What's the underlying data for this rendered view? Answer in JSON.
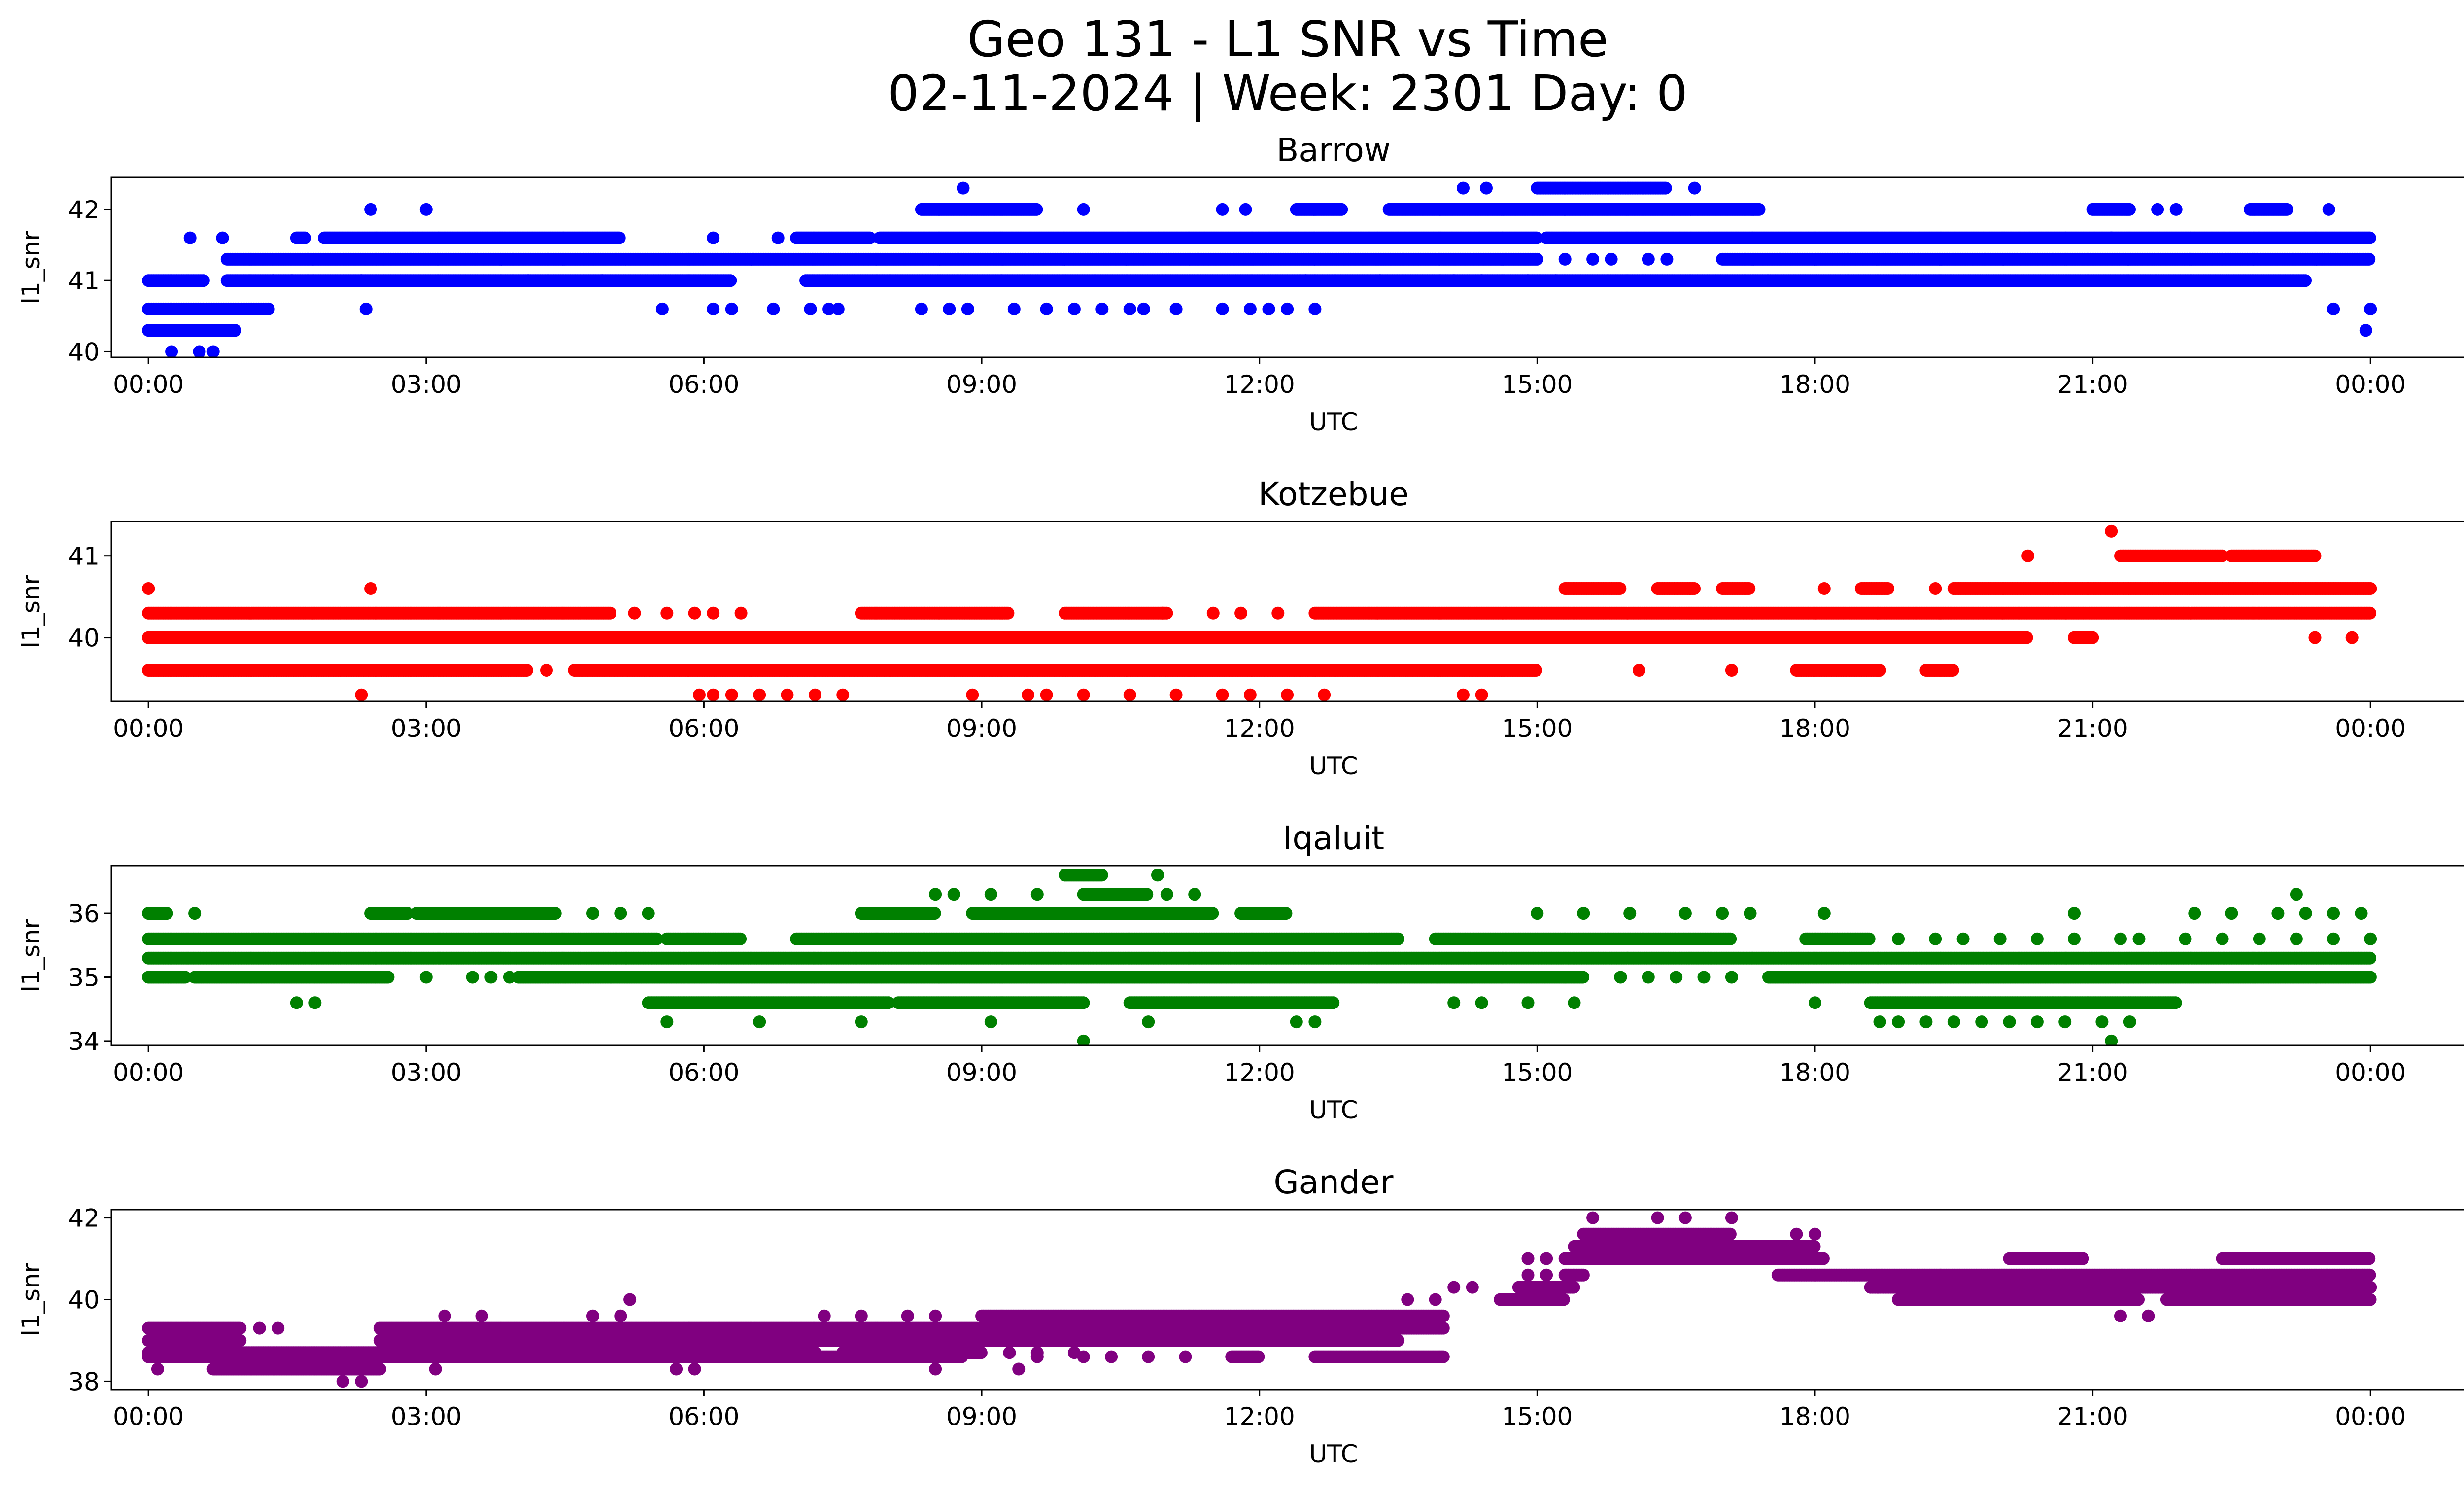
{
  "figure": {
    "title_line1": "Geo 131 - L1 SNR vs Time",
    "title_line2": "02-11-2024 | Week: 2301 Day: 0"
  },
  "chart_data": [
    {
      "type": "scatter",
      "title": "Barrow",
      "xlabel": "UTC",
      "ylabel": "l1_snr",
      "color": "#0000ff",
      "xlim": [
        -0.4,
        26.0
      ],
      "ylim": [
        39.92,
        42.45
      ],
      "xticks": [
        0,
        3,
        6,
        9,
        12,
        15,
        18,
        21,
        24
      ],
      "xtick_labels": [
        "00:00",
        "03:00",
        "06:00",
        "09:00",
        "12:00",
        "15:00",
        "18:00",
        "21:00",
        "00:00"
      ],
      "yticks": [
        40,
        41,
        42
      ],
      "series": [
        {
          "name": "band",
          "value": 41.0,
          "segments": [
            [
              0.0,
              0.6
            ],
            [
              0.85,
              6.3
            ],
            [
              7.1,
              17.5
            ],
            [
              17.5,
              23.3
            ]
          ],
          "points": [
            1.35,
            1.55,
            2.3,
            4.1,
            4.9,
            12.5,
            13.3,
            14.1,
            14.4,
            14.9,
            15.2
          ]
        },
        {
          "name": "band",
          "value": 41.3,
          "segments": [
            [
              0.85,
              15.0
            ],
            [
              17.0,
              24.0
            ]
          ],
          "points": [
            15.3,
            15.6,
            15.8,
            16.2,
            16.4
          ]
        },
        {
          "name": "band",
          "value": 41.6,
          "segments": [
            [
              1.6,
              1.7
            ],
            [
              1.9,
              5.1
            ],
            [
              7.0,
              7.8
            ],
            [
              7.9,
              15.0
            ],
            [
              15.1,
              24.0
            ]
          ],
          "points": [
            0.45,
            0.8,
            6.1,
            6.8,
            21.2
          ]
        },
        {
          "name": "band",
          "value": 42.0,
          "segments": [
            [
              8.35,
              9.6
            ],
            [
              12.4,
              12.9
            ],
            [
              13.4,
              17.4
            ],
            [
              21.0,
              21.4
            ],
            [
              22.7,
              23.1
            ]
          ],
          "points": [
            2.4,
            3.0,
            10.1,
            11.6,
            11.85,
            21.7,
            21.9,
            23.55
          ]
        },
        {
          "name": "band",
          "value": 42.3,
          "segments": [
            [
              15.0,
              16.4
            ]
          ],
          "points": [
            8.8,
            14.2,
            14.45,
            16.7
          ]
        },
        {
          "name": "band",
          "value": 40.6,
          "segments": [
            [
              0.0,
              1.3
            ]
          ],
          "points": [
            2.35,
            5.55,
            6.1,
            6.3,
            6.75,
            7.15,
            7.35,
            7.45,
            8.35,
            8.65,
            8.85,
            9.35,
            9.7,
            10.0,
            10.3,
            10.6,
            10.75,
            11.1,
            11.6,
            11.9,
            12.1,
            12.3,
            12.6,
            23.6,
            24.0
          ]
        },
        {
          "name": "band",
          "value": 40.3,
          "segments": [
            [
              0.0,
              0.95
            ]
          ],
          "points": [
            23.95
          ]
        },
        {
          "name": "band",
          "value": 40.0,
          "segments": [],
          "points": [
            0.25,
            0.55,
            0.7
          ]
        }
      ]
    },
    {
      "type": "scatter",
      "title": "Kotzebue",
      "xlabel": "UTC",
      "ylabel": "l1_snr",
      "color": "#ff0000",
      "xlim": [
        -0.4,
        26.0
      ],
      "ylim": [
        39.22,
        41.42
      ],
      "xticks": [
        0,
        3,
        6,
        9,
        12,
        15,
        18,
        21,
        24
      ],
      "xtick_labels": [
        "00:00",
        "03:00",
        "06:00",
        "09:00",
        "12:00",
        "15:00",
        "18:00",
        "21:00",
        "00:00"
      ],
      "yticks": [
        40,
        41
      ],
      "series": [
        {
          "name": "band",
          "value": 40.0,
          "segments": [
            [
              0.0,
              20.3
            ],
            [
              20.8,
              21.0
            ]
          ],
          "points": [
            23.4,
            23.8
          ]
        },
        {
          "name": "band",
          "value": 40.3,
          "segments": [
            [
              0.0,
              5.0
            ],
            [
              7.7,
              9.3
            ],
            [
              9.9,
              11.0
            ],
            [
              12.6,
              24.0
            ]
          ],
          "points": [
            5.25,
            5.6,
            5.9,
            6.1,
            6.4,
            10.95,
            11.5,
            11.8,
            12.2
          ]
        },
        {
          "name": "band",
          "value": 39.6,
          "segments": [
            [
              0.0,
              4.1
            ],
            [
              4.6,
              15.0
            ],
            [
              17.8,
              18.7
            ],
            [
              19.2,
              19.5
            ]
          ],
          "points": [
            4.3,
            17.1,
            16.1
          ]
        },
        {
          "name": "band",
          "value": 39.3,
          "segments": [],
          "points": [
            2.3,
            5.95,
            6.1,
            6.3,
            6.6,
            6.9,
            7.2,
            7.5,
            8.9,
            9.5,
            9.7,
            10.1,
            10.6,
            11.1,
            11.6,
            11.9,
            12.3,
            12.7,
            14.2,
            14.4
          ]
        },
        {
          "name": "band",
          "value": 40.6,
          "segments": [
            [
              15.3,
              15.9
            ],
            [
              16.3,
              16.7
            ],
            [
              17.0,
              17.3
            ],
            [
              18.5,
              18.8
            ],
            [
              19.5,
              24.0
            ]
          ],
          "points": [
            0.0,
            2.4,
            18.1,
            19.3
          ]
        },
        {
          "name": "band",
          "value": 41.0,
          "segments": [
            [
              21.3,
              22.4
            ],
            [
              22.5,
              23.4
            ]
          ],
          "points": [
            20.3
          ]
        },
        {
          "name": "band",
          "value": 41.3,
          "segments": [],
          "points": [
            21.2
          ]
        }
      ]
    },
    {
      "type": "scatter",
      "title": "Iqaluit",
      "xlabel": "UTC",
      "ylabel": "l1_snr",
      "color": "#008000",
      "xlim": [
        -0.4,
        26.0
      ],
      "ylim": [
        33.93,
        36.75
      ],
      "xticks": [
        0,
        3,
        6,
        9,
        12,
        15,
        18,
        21,
        24
      ],
      "xtick_labels": [
        "00:00",
        "03:00",
        "06:00",
        "09:00",
        "12:00",
        "15:00",
        "18:00",
        "21:00",
        "00:00"
      ],
      "yticks": [
        34,
        35,
        36
      ],
      "series": [
        {
          "name": "band",
          "value": 35.3,
          "segments": [
            [
              0.0,
              24.0
            ]
          ],
          "points": []
        },
        {
          "name": "band",
          "value": 35.6,
          "segments": [
            [
              0.0,
              5.5
            ],
            [
              5.6,
              6.4
            ],
            [
              7.0,
              13.5
            ],
            [
              13.9,
              17.1
            ],
            [
              17.9,
              18.6
            ]
          ],
          "points": [
            18.9,
            19.3,
            19.6,
            20.0,
            20.4,
            20.8,
            21.3,
            21.5,
            22.0,
            22.4,
            22.8,
            23.2,
            23.6,
            24.0
          ]
        },
        {
          "name": "band",
          "value": 35.0,
          "segments": [
            [
              0.0,
              0.4
            ],
            [
              0.5,
              2.6
            ],
            [
              4.0,
              5.0
            ],
            [
              5.0,
              15.5
            ],
            [
              17.5,
              24.0
            ]
          ],
          "points": [
            3.0,
            3.5,
            3.7,
            3.9,
            15.9,
            16.2,
            16.5,
            16.8,
            17.1
          ]
        },
        {
          "name": "band",
          "value": 36.0,
          "segments": [
            [
              0.0,
              0.2
            ],
            [
              2.4,
              2.8
            ],
            [
              2.9,
              4.4
            ],
            [
              7.7,
              8.5
            ],
            [
              8.9,
              11.5
            ],
            [
              11.8,
              12.3
            ]
          ],
          "points": [
            0.5,
            4.8,
            5.1,
            5.4,
            15.0,
            15.5,
            16.0,
            16.6,
            17.0,
            17.3,
            18.1,
            20.8,
            22.1,
            22.5,
            23.0,
            23.3,
            23.6,
            23.9
          ]
        },
        {
          "name": "band",
          "value": 34.6,
          "segments": [
            [
              5.4,
              8.0
            ],
            [
              8.1,
              10.1
            ],
            [
              10.6,
              12.8
            ],
            [
              18.6,
              21.9
            ]
          ],
          "points": [
            1.6,
            1.8,
            14.1,
            14.4,
            14.9,
            15.4,
            18.0
          ]
        },
        {
          "name": "band",
          "value": 36.3,
          "segments": [
            [
              10.1,
              10.8
            ]
          ],
          "points": [
            8.5,
            8.7,
            9.1,
            9.6,
            11.0,
            11.3,
            23.2
          ]
        },
        {
          "name": "band",
          "value": 36.6,
          "segments": [
            [
              9.9,
              10.3
            ]
          ],
          "points": [
            10.9
          ]
        },
        {
          "name": "band",
          "value": 34.3,
          "segments": [],
          "points": [
            5.6,
            6.6,
            7.7,
            9.1,
            10.8,
            12.4,
            12.6,
            18.7,
            18.9,
            19.2,
            19.5,
            19.8,
            20.1,
            20.4,
            20.7,
            21.1,
            21.4
          ]
        },
        {
          "name": "band",
          "value": 34.0,
          "segments": [],
          "points": [
            10.1,
            21.2
          ]
        }
      ]
    },
    {
      "type": "scatter",
      "title": "Gander",
      "xlabel": "UTC",
      "ylabel": "l1_snr",
      "color": "#800080",
      "xlim": [
        -0.4,
        26.0
      ],
      "ylim": [
        37.8,
        42.2
      ],
      "xticks": [
        0,
        3,
        6,
        9,
        12,
        15,
        18,
        21,
        24
      ],
      "xtick_labels": [
        "00:00",
        "03:00",
        "06:00",
        "09:00",
        "12:00",
        "15:00",
        "18:00",
        "21:00",
        "00:00"
      ],
      "yticks": [
        38,
        40,
        42
      ],
      "series": [
        {
          "name": "band",
          "value": 39.0,
          "segments": [
            [
              0.0,
              1.0
            ],
            [
              2.5,
              13.5
            ]
          ],
          "points": []
        },
        {
          "name": "band",
          "value": 38.7,
          "segments": [
            [
              0.0,
              7.2
            ],
            [
              7.5,
              9.0
            ]
          ],
          "points": [
            9.3,
            9.6,
            10.0
          ]
        },
        {
          "name": "band",
          "value": 39.3,
          "segments": [
            [
              0.0,
              1.0
            ],
            [
              2.5,
              9.6
            ],
            [
              9.0,
              14.0
            ]
          ],
          "points": [
            1.2,
            1.4
          ]
        },
        {
          "name": "band",
          "value": 38.3,
          "segments": [
            [
              0.7,
              2.5
            ]
          ],
          "points": [
            0.1,
            3.1,
            5.7,
            5.9,
            8.5,
            9.4
          ]
        },
        {
          "name": "band",
          "value": 38.6,
          "segments": [
            [
              0.0,
              8.8
            ],
            [
              11.7,
              12.0
            ],
            [
              12.6,
              14.0
            ]
          ],
          "points": [
            9.6,
            10.1,
            10.4,
            10.8,
            11.2
          ]
        },
        {
          "name": "band",
          "value": 38.0,
          "segments": [],
          "points": [
            2.1,
            2.3
          ]
        },
        {
          "name": "band",
          "value": 39.6,
          "segments": [
            [
              9.0,
              14.0
            ]
          ],
          "points": [
            3.2,
            3.6,
            4.8,
            5.1,
            7.3,
            7.7,
            8.2,
            8.5
          ]
        },
        {
          "name": "band",
          "value": 40.0,
          "segments": [
            [
              14.6,
              15.3
            ],
            [
              18.9,
              21.5
            ],
            [
              21.8,
              24.0
            ]
          ],
          "points": [
            5.2,
            13.6,
            13.9
          ]
        },
        {
          "name": "band",
          "value": 40.3,
          "segments": [
            [
              14.8,
              15.4
            ],
            [
              18.6,
              24.0
            ]
          ],
          "points": [
            14.1,
            14.3
          ]
        },
        {
          "name": "band",
          "value": 40.6,
          "segments": [
            [
              15.3,
              15.5
            ],
            [
              17.6,
              24.0
            ]
          ],
          "points": [
            14.9,
            15.1
          ]
        },
        {
          "name": "band",
          "value": 41.0,
          "segments": [
            [
              15.3,
              18.1
            ],
            [
              20.1,
              20.9
            ],
            [
              22.4,
              24.0
            ]
          ],
          "points": [
            14.9,
            15.1
          ]
        },
        {
          "name": "band",
          "value": 41.3,
          "segments": [
            [
              15.4,
              18.0
            ]
          ],
          "points": []
        },
        {
          "name": "band",
          "value": 41.6,
          "segments": [
            [
              15.5,
              17.1
            ]
          ],
          "points": [
            17.8,
            18.0
          ]
        },
        {
          "name": "band",
          "value": 42.0,
          "segments": [],
          "points": [
            15.6,
            16.3,
            16.6,
            17.1
          ]
        },
        {
          "name": "band",
          "value": 39.6,
          "segments": [],
          "points": [
            21.3,
            21.6
          ]
        }
      ]
    }
  ]
}
